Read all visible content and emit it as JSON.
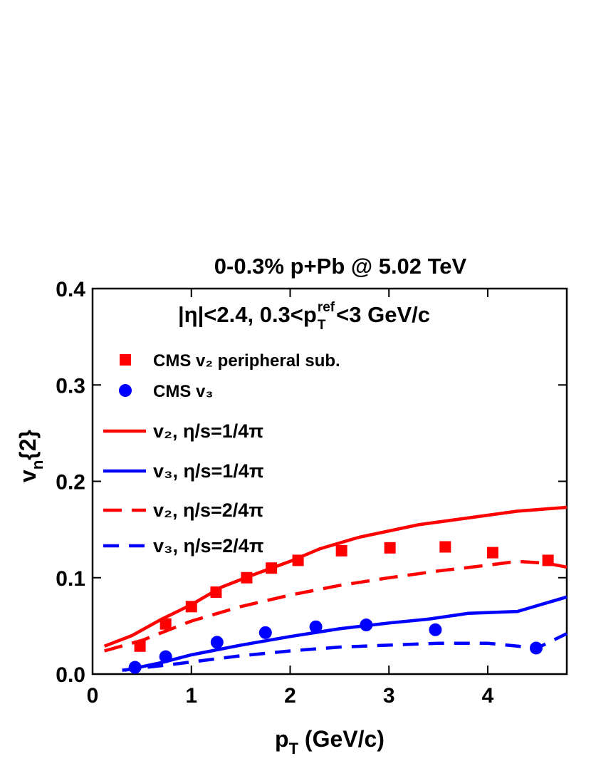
{
  "chart_data": {
    "type": "scatter-line",
    "title": "0-0.3% p+Pb @ 5.02 TeV",
    "annotation": [
      "|η|<2.4, 0.3<p",
      "ref",
      "T",
      "<3 GeV/c"
    ],
    "xlabel": [
      "p",
      "T",
      " (GeV/c)"
    ],
    "ylabel": [
      "v",
      "n",
      "{2}"
    ],
    "xlim": [
      0,
      4.8
    ],
    "ylim": [
      0,
      0.4
    ],
    "xticks": [
      0,
      1,
      2,
      3,
      4
    ],
    "yticks": [
      {
        "value": 0,
        "label": "0.0"
      },
      0.1,
      0.2,
      0.3,
      0.4
    ],
    "series": [
      {
        "name": "CMS v₂ peripheral sub.",
        "color": "#ff0000",
        "style": "square",
        "x": [
          0.48,
          0.74,
          1.0,
          1.25,
          1.56,
          1.81,
          2.08,
          2.52,
          3.01,
          3.57,
          4.05,
          4.61
        ],
        "values": [
          0.029,
          0.052,
          0.07,
          0.085,
          0.1,
          0.11,
          0.118,
          0.128,
          0.131,
          0.132,
          0.126,
          0.118
        ]
      },
      {
        "name": "CMS v₃",
        "color": "#0000ff",
        "style": "circle",
        "x": [
          0.43,
          0.74,
          1.26,
          1.75,
          2.26,
          2.77,
          3.47,
          4.49
        ],
        "values": [
          0.007,
          0.018,
          0.033,
          0.043,
          0.049,
          0.051,
          0.046,
          0.027
        ]
      },
      {
        "name": "v₂, η/s=1/4π",
        "color": "#ff0000",
        "style": "solid",
        "x": [
          0.12,
          0.4,
          0.7,
          1.0,
          1.3,
          1.6,
          2.0,
          2.3,
          2.7,
          3.3,
          3.8,
          4.3,
          4.8
        ],
        "values": [
          0.029,
          0.04,
          0.057,
          0.072,
          0.09,
          0.102,
          0.117,
          0.13,
          0.142,
          0.155,
          0.162,
          0.169,
          0.173
        ]
      },
      {
        "name": "v₃, η/s=1/4π",
        "color": "#0000ff",
        "style": "solid",
        "x": [
          0.33,
          0.7,
          1.0,
          1.5,
          2.0,
          2.5,
          3.0,
          3.4,
          3.8,
          4.3,
          4.8
        ],
        "values": [
          0.004,
          0.012,
          0.02,
          0.03,
          0.039,
          0.047,
          0.053,
          0.057,
          0.063,
          0.065,
          0.08
        ]
      },
      {
        "name": "v₂, η/s=2/4π",
        "color": "#ff0000",
        "style": "dashed",
        "x": [
          0.12,
          0.5,
          1.0,
          1.5,
          2.0,
          2.5,
          3.0,
          3.5,
          4.0,
          4.3,
          4.6,
          4.8
        ],
        "values": [
          0.024,
          0.035,
          0.055,
          0.07,
          0.082,
          0.092,
          0.1,
          0.107,
          0.113,
          0.117,
          0.115,
          0.111
        ]
      },
      {
        "name": "v₃, η/s=2/4π",
        "color": "#0000ff",
        "style": "dashed",
        "x": [
          0.3,
          0.8,
          1.5,
          2.0,
          2.5,
          3.0,
          3.5,
          4.0,
          4.5,
          4.8
        ],
        "values": [
          0.004,
          0.01,
          0.019,
          0.024,
          0.028,
          0.03,
          0.032,
          0.032,
          0.027,
          0.042
        ]
      }
    ]
  }
}
